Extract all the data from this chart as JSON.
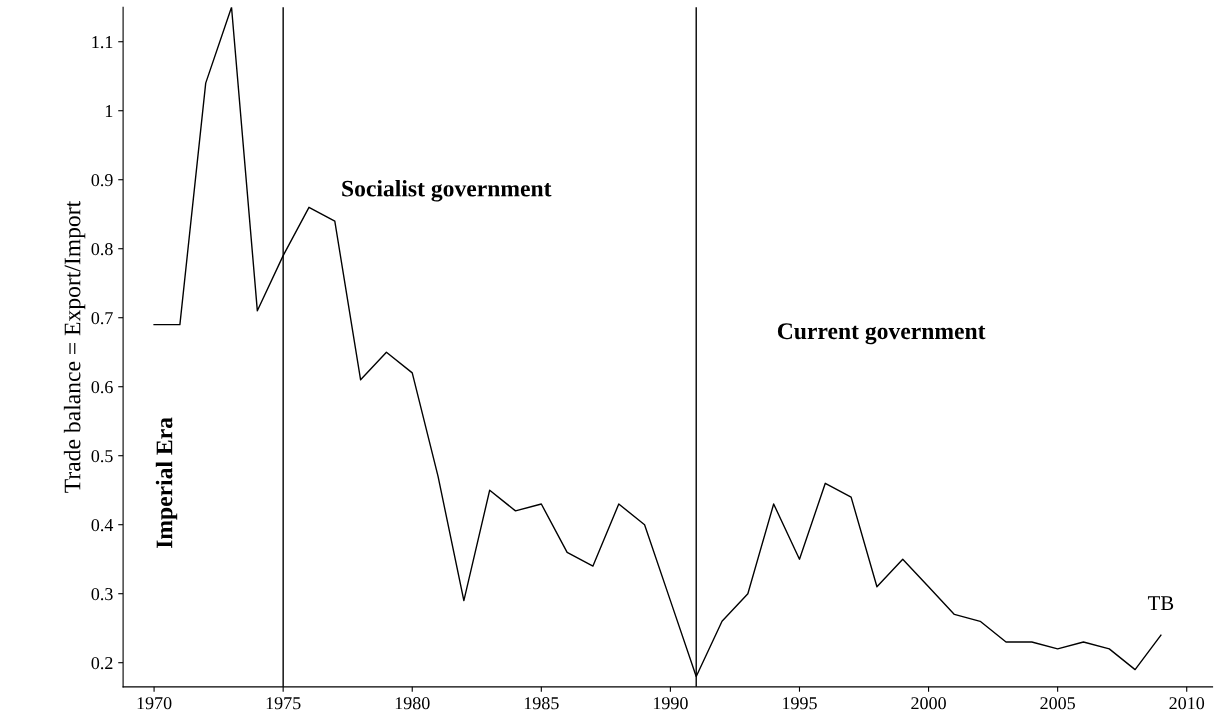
{
  "chart_data": {
    "type": "line",
    "ylabel": "Trade balance = Export/Import",
    "x": [
      1970,
      1971,
      1972,
      1973,
      1974,
      1975,
      1976,
      1977,
      1978,
      1979,
      1980,
      1981,
      1982,
      1983,
      1984,
      1985,
      1986,
      1987,
      1988,
      1989,
      1990,
      1991,
      1992,
      1993,
      1994,
      1995,
      1996,
      1997,
      1998,
      1999,
      2000,
      2001,
      2002,
      2003,
      2004,
      2005,
      2006,
      2007,
      2008,
      2009
    ],
    "series": [
      {
        "name": "TB",
        "color": "#000000",
        "values": [
          0.69,
          0.69,
          1.04,
          1.15,
          0.71,
          0.79,
          0.86,
          0.84,
          0.61,
          0.65,
          0.62,
          0.47,
          0.29,
          0.45,
          0.42,
          0.43,
          0.36,
          0.34,
          0.43,
          0.4,
          0.29,
          0.18,
          0.26,
          0.3,
          0.43,
          0.35,
          0.46,
          0.44,
          0.31,
          0.35,
          0.31,
          0.27,
          0.26,
          0.23,
          0.23,
          0.22,
          0.23,
          0.22,
          0.19,
          0.24
        ]
      }
    ],
    "xlim": [
      1968.8,
      2011
    ],
    "xticks": [
      1970,
      1975,
      1980,
      1985,
      1990,
      1995,
      2000,
      2005,
      2010
    ],
    "ylim": [
      0.165,
      1.15
    ],
    "yticks": [
      0.2,
      0.3,
      0.4,
      0.5,
      0.6,
      0.7,
      0.8,
      0.9,
      1,
      1.1
    ],
    "ref_lines": [
      {
        "axis": "x",
        "value": 1975,
        "color": "#000000"
      },
      {
        "axis": "x",
        "value": 1991,
        "color": "#000000"
      }
    ],
    "annotations": [
      "Imperial Era",
      "Socialist government",
      "Current government"
    ],
    "grid": false,
    "legend": false,
    "marker": "none",
    "line_style": "solid"
  }
}
